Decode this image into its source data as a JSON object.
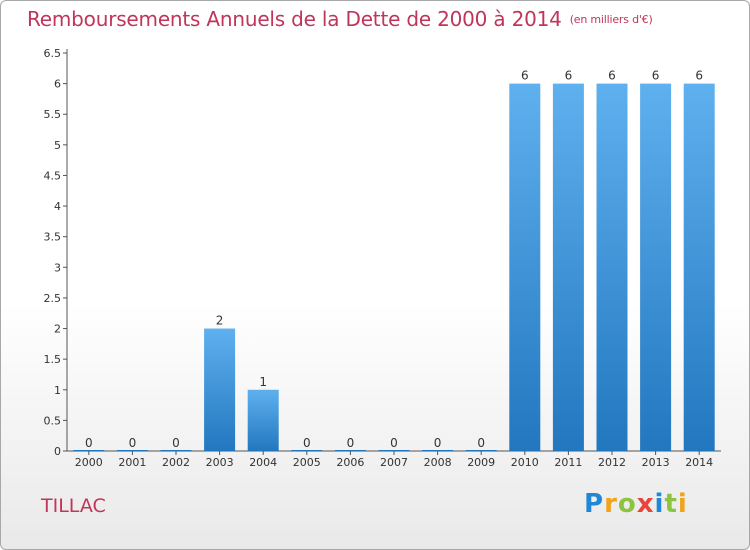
{
  "chart_data": {
    "type": "bar",
    "title": "Remboursements Annuels de la Dette de 2000 à 2014",
    "subtitle": "(en milliers d'€)",
    "xlabel": "",
    "ylabel": "",
    "categories": [
      "2000",
      "2001",
      "2002",
      "2003",
      "2004",
      "2005",
      "2006",
      "2007",
      "2008",
      "2009",
      "2010",
      "2011",
      "2012",
      "2013",
      "2014"
    ],
    "values": [
      0,
      0,
      0,
      2,
      1,
      0,
      0,
      0,
      0,
      0,
      6,
      6,
      6,
      6,
      6
    ],
    "data_labels": [
      "0",
      "0",
      "0",
      "2",
      "1",
      "0",
      "0",
      "0",
      "0",
      "0",
      "6",
      "6",
      "6",
      "6",
      "6"
    ],
    "ylim": [
      0,
      6.5
    ],
    "yticks": [
      "0",
      "0.5",
      "1",
      "1.5",
      "2",
      "2.5",
      "3",
      "3.5",
      "4",
      "4.5",
      "5",
      "5.5",
      "6",
      "6.5"
    ],
    "grid": false,
    "bar_color": "#3b8fd6"
  },
  "footer": {
    "commune": "TILLAC",
    "logo_letters": [
      "P",
      "r",
      "o",
      "x",
      "i",
      "t",
      "i"
    ],
    "logo_colors": [
      "#1e88d6",
      "#f2a31c",
      "#8cc43f",
      "#e8443a",
      "#1e88d6",
      "#8cc43f",
      "#f2a31c"
    ]
  }
}
